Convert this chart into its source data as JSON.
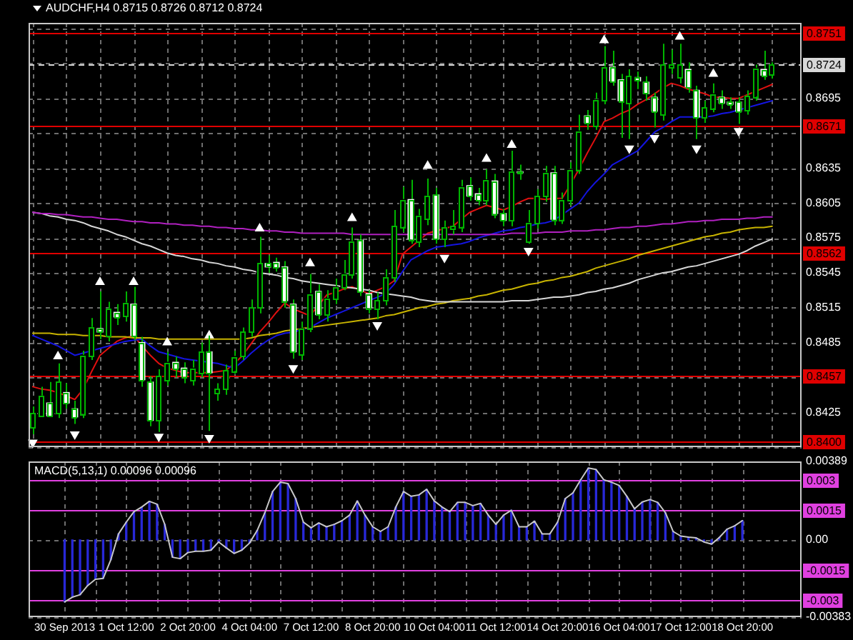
{
  "chart_data": [
    {
      "type": "candlestick",
      "title": "AUDCHF,H4 0.8715 0.8726 0.8712 0.8724",
      "color": "#00b400",
      "categories": [
        null,
        null,
        null,
        null,
        null,
        null,
        null,
        null,
        null,
        null,
        null,
        null,
        null,
        null,
        null,
        null,
        null,
        null,
        null,
        null,
        null,
        null,
        null,
        null,
        null,
        null,
        null,
        null,
        null,
        null,
        null,
        null,
        null,
        null,
        null,
        null,
        null,
        null,
        null,
        null,
        null,
        null,
        null,
        null,
        null,
        null,
        null,
        null,
        null,
        null,
        null,
        null,
        null,
        null,
        null,
        null,
        null,
        null,
        null,
        null,
        null,
        null,
        null,
        null,
        null,
        null,
        null,
        null,
        null,
        null,
        null,
        null,
        null,
        null,
        null,
        null,
        null,
        null,
        null,
        null,
        null,
        null,
        null,
        null,
        null,
        null,
        null,
        null,
        null
      ],
      "ohlc": [
        [
          0.8412,
          0.843,
          0.8406,
          0.8424
        ],
        [
          0.8422,
          0.8447,
          0.8421,
          0.8439
        ],
        [
          0.8433,
          0.8451,
          0.8421,
          0.8422
        ],
        [
          0.8424,
          0.8467,
          0.842,
          0.8451
        ],
        [
          0.8442,
          0.845,
          0.8428,
          0.8433
        ],
        [
          0.8428,
          0.8435,
          0.8415,
          0.8421
        ],
        [
          0.8424,
          0.8478,
          0.842,
          0.8474
        ],
        [
          0.8474,
          0.8506,
          0.847,
          0.8498
        ],
        [
          0.8497,
          0.8529,
          0.8488,
          0.8494
        ],
        [
          0.8491,
          0.852,
          0.8486,
          0.8514
        ],
        [
          0.8511,
          0.8518,
          0.85,
          0.8507
        ],
        [
          0.8508,
          0.8529,
          0.8503,
          0.8519
        ],
        [
          0.8518,
          0.8533,
          0.8487,
          0.8491
        ],
        [
          0.8485,
          0.849,
          0.8447,
          0.8453
        ],
        [
          0.8451,
          0.8456,
          0.8413,
          0.8418
        ],
        [
          0.8418,
          0.8462,
          0.8408,
          0.8456
        ],
        [
          0.8453,
          0.8477,
          0.8448,
          0.8468
        ],
        [
          0.8468,
          0.8473,
          0.8455,
          0.8463
        ],
        [
          0.8463,
          0.8468,
          0.845,
          0.8456
        ],
        [
          0.8453,
          0.847,
          0.8448,
          0.8463
        ],
        [
          0.8459,
          0.8485,
          0.8455,
          0.8477
        ],
        [
          0.8477,
          0.8491,
          0.8409,
          0.8459
        ],
        [
          0.8441,
          0.845,
          0.8435,
          0.8445
        ],
        [
          0.8445,
          0.8466,
          0.844,
          0.8461
        ],
        [
          0.8461,
          0.8478,
          0.8458,
          0.8473
        ],
        [
          0.8473,
          0.8498,
          0.847,
          0.8494
        ],
        [
          0.8494,
          0.8522,
          0.849,
          0.8515
        ],
        [
          0.8515,
          0.8576,
          0.851,
          0.8553
        ],
        [
          0.8553,
          0.856,
          0.8545,
          0.855
        ],
        [
          0.8554,
          0.8558,
          0.8546,
          0.855
        ],
        [
          0.855,
          0.8555,
          0.8515,
          0.8521
        ],
        [
          0.8518,
          0.8522,
          0.8471,
          0.8477
        ],
        [
          0.8475,
          0.8503,
          0.847,
          0.8497
        ],
        [
          0.8498,
          0.8544,
          0.8494,
          0.8527
        ],
        [
          0.8529,
          0.8535,
          0.8505,
          0.8509
        ],
        [
          0.8509,
          0.853,
          0.8503,
          0.8523
        ],
        [
          0.8523,
          0.854,
          0.8518,
          0.8533
        ],
        [
          0.8533,
          0.8556,
          0.853,
          0.8544
        ],
        [
          0.8544,
          0.8584,
          0.854,
          0.8572
        ],
        [
          0.8573,
          0.8578,
          0.8525,
          0.8529
        ],
        [
          0.8527,
          0.853,
          0.851,
          0.8515
        ],
        [
          0.8514,
          0.8528,
          0.8505,
          0.8521
        ],
        [
          0.8521,
          0.8548,
          0.8517,
          0.8541
        ],
        [
          0.8541,
          0.8599,
          0.8537,
          0.8585
        ],
        [
          0.8585,
          0.8619,
          0.858,
          0.8608
        ],
        [
          0.8608,
          0.8625,
          0.857,
          0.8574
        ],
        [
          0.8572,
          0.86,
          0.8567,
          0.8594
        ],
        [
          0.8591,
          0.8626,
          0.8586,
          0.8611
        ],
        [
          0.8612,
          0.8618,
          0.857,
          0.8574
        ],
        [
          0.8574,
          0.859,
          0.8567,
          0.8584
        ],
        [
          0.8582,
          0.8599,
          0.8578,
          0.8585
        ],
        [
          0.8585,
          0.8625,
          0.858,
          0.8619
        ],
        [
          0.862,
          0.8627,
          0.8607,
          0.8611
        ],
        [
          0.8613,
          0.8618,
          0.8603,
          0.8608
        ],
        [
          0.8608,
          0.8634,
          0.8603,
          0.8625
        ],
        [
          0.8624,
          0.863,
          0.8592,
          0.8596
        ],
        [
          0.8596,
          0.86,
          0.8585,
          0.859
        ],
        [
          0.859,
          0.865,
          0.8585,
          0.8632
        ],
        [
          0.8632,
          0.8638,
          0.8625,
          0.8631
        ],
        [
          0.8572,
          0.8599,
          0.857,
          0.8588
        ],
        [
          0.8588,
          0.8617,
          0.8583,
          0.8611
        ],
        [
          0.8611,
          0.8637,
          0.8606,
          0.8631
        ],
        [
          0.8631,
          0.8637,
          0.8586,
          0.8591
        ],
        [
          0.8591,
          0.8614,
          0.8587,
          0.8608
        ],
        [
          0.8608,
          0.864,
          0.8603,
          0.8634
        ],
        [
          0.8634,
          0.8681,
          0.863,
          0.8667
        ],
        [
          0.868,
          0.8685,
          0.8668,
          0.8674
        ],
        [
          0.8672,
          0.87,
          0.8668,
          0.8694
        ],
        [
          0.8694,
          0.874,
          0.869,
          0.8722
        ],
        [
          0.8722,
          0.8736,
          0.8706,
          0.871
        ],
        [
          0.8711,
          0.8716,
          0.8661,
          0.8693
        ],
        [
          0.8691,
          0.872,
          0.866,
          0.8714
        ],
        [
          0.8713,
          0.8718,
          0.8703,
          0.871
        ],
        [
          0.8709,
          0.8714,
          0.8693,
          0.8699
        ],
        [
          0.8696,
          0.87,
          0.867,
          0.8684
        ],
        [
          0.8681,
          0.8742,
          0.8676,
          0.8724
        ],
        [
          0.8722,
          0.8737,
          0.8716,
          0.8724
        ],
        [
          0.8713,
          0.8742,
          0.8708,
          0.8724
        ],
        [
          0.872,
          0.8726,
          0.87,
          0.8705
        ],
        [
          0.8702,
          0.8706,
          0.866,
          0.8679
        ],
        [
          0.8679,
          0.8693,
          0.8674,
          0.8687
        ],
        [
          0.8687,
          0.8708,
          0.8683,
          0.8699
        ],
        [
          0.8696,
          0.8702,
          0.8686,
          0.8691
        ],
        [
          0.8692,
          0.8696,
          0.8686,
          0.869
        ],
        [
          0.8692,
          0.8696,
          0.8673,
          0.8684
        ],
        [
          0.8685,
          0.8702,
          0.8681,
          0.8697
        ],
        [
          0.8697,
          0.8724,
          0.8693,
          0.8721
        ],
        [
          0.872,
          0.8736,
          0.8711,
          0.8715
        ],
        [
          0.8715,
          0.8726,
          0.8712,
          0.8724
        ]
      ],
      "colors": [
        "#000000",
        "#000000",
        "#ffffff",
        "#000000",
        "#ffffff",
        "#ffffff",
        "#000000",
        "#000000",
        "#ffffff",
        "#000000",
        "#ffffff",
        "#000000",
        "#ffffff",
        "#ffffff",
        "#ffffff",
        "#000000",
        "#000000",
        "#ffffff",
        "#ffffff",
        "#000000",
        "#000000",
        "#ffffff",
        "#000000",
        "#000000",
        "#000000",
        "#000000",
        "#000000",
        "#000000",
        "#ffffff",
        "#ffffff",
        "#ffffff",
        "#ffffff",
        "#000000",
        "#000000",
        "#ffffff",
        "#000000",
        "#000000",
        "#000000",
        "#000000",
        "#ffffff",
        "#ffffff",
        "#000000",
        "#000000",
        "#000000",
        "#000000",
        "#ffffff",
        "#000000",
        "#000000",
        "#ffffff",
        "#000000",
        "#000000",
        "#000000",
        "#ffffff",
        "#ffffff",
        "#000000",
        "#ffffff",
        "#ffffff",
        "#000000",
        "#ffffff",
        "#000000",
        "#000000",
        "#000000",
        "#ffffff",
        "#000000",
        "#000000",
        "#000000",
        "#ffffff",
        "#000000",
        "#000000",
        "#ffffff",
        "#ffffff",
        "#000000",
        "#ffffff",
        "#ffffff",
        "#ffffff",
        "#000000",
        "#000000",
        "#000000",
        "#ffffff",
        "#ffffff",
        "#000000",
        "#000000",
        "#ffffff",
        "#ffffff",
        "#ffffff",
        "#000000",
        "#000000",
        "#ffffff",
        "#000000"
      ],
      "series": [
        {
          "type": "line",
          "color": "#b020c0",
          "values": [
            0.8597,
            0.8596,
            0.8596,
            0.8595,
            0.8595,
            0.8594,
            0.8593,
            0.8593,
            0.8592,
            0.8591,
            0.8591,
            0.859,
            0.8589,
            0.8589,
            0.8588,
            0.8588,
            0.8587,
            0.8587,
            0.8586,
            0.8586,
            0.8585,
            0.8585,
            0.8584,
            0.8584,
            0.8583,
            0.8583,
            0.8582,
            0.8582,
            0.8581,
            0.8581,
            0.858,
            0.858,
            0.8579,
            0.8579,
            0.8579,
            0.8579,
            0.8579,
            0.8579,
            0.8578,
            0.8578,
            0.8578,
            0.8578,
            0.8578,
            0.8578,
            0.8578,
            0.8578,
            0.8578,
            0.8578,
            0.8578,
            0.8578,
            0.8578,
            0.8578,
            0.8578,
            0.8578,
            0.8578,
            0.8578,
            0.8578,
            0.8579,
            0.8579,
            0.8579,
            0.8579,
            0.858,
            0.858,
            0.858,
            0.8581,
            0.8581,
            0.8581,
            0.8582,
            0.8582,
            0.8583,
            0.8584,
            0.8584,
            0.8585,
            0.8585,
            0.8586,
            0.8587,
            0.8587,
            0.8588,
            0.8589,
            0.8589,
            0.859,
            0.859,
            0.8591,
            0.8591,
            0.8591,
            0.8592,
            0.8592,
            0.8593,
            0.8593
          ]
        },
        {
          "type": "line",
          "color": "#d8d8d8",
          "values": [
            0.8597,
            0.8596,
            0.8594,
            0.8593,
            0.8591,
            0.859,
            0.8588,
            0.8585,
            0.8583,
            0.8581,
            0.8578,
            0.8576,
            0.8573,
            0.857,
            0.8568,
            0.8565,
            0.8562,
            0.856,
            0.8559,
            0.8557,
            0.8556,
            0.8554,
            0.8553,
            0.8551,
            0.855,
            0.8548,
            0.8547,
            0.8545,
            0.8544,
            0.8543,
            0.8541,
            0.854,
            0.8538,
            0.8537,
            0.8536,
            0.8535,
            0.8534,
            0.8533,
            0.8532,
            0.8531,
            0.853,
            0.8528,
            0.8527,
            0.8526,
            0.8525,
            0.8524,
            0.8522,
            0.8521,
            0.852,
            0.852,
            0.852,
            0.852,
            0.852,
            0.852,
            0.852,
            0.852,
            0.852,
            0.8521,
            0.8521,
            0.8521,
            0.8522,
            0.8523,
            0.8524,
            0.8524,
            0.8525,
            0.8526,
            0.8528,
            0.8529,
            0.8531,
            0.8532,
            0.8534,
            0.8536,
            0.8539,
            0.8541,
            0.8543,
            0.8545,
            0.8546,
            0.8548,
            0.855,
            0.8551,
            0.8553,
            0.8555,
            0.8557,
            0.8559,
            0.8561,
            0.8564,
            0.8568,
            0.8571,
            0.8574
          ]
        },
        {
          "type": "line",
          "color": "#c8b400",
          "values": [
            0.8493,
            0.8493,
            0.8493,
            0.8492,
            0.8492,
            0.8492,
            0.8491,
            0.8491,
            0.8491,
            0.849,
            0.849,
            0.849,
            0.8489,
            0.8489,
            0.8489,
            0.8488,
            0.8488,
            0.8488,
            0.8488,
            0.8488,
            0.8488,
            0.8488,
            0.8488,
            0.8488,
            0.8488,
            0.8488,
            0.8489,
            0.8491,
            0.8492,
            0.8493,
            0.8495,
            0.8496,
            0.8497,
            0.8498,
            0.8499,
            0.85,
            0.8501,
            0.8502,
            0.8503,
            0.8504,
            0.8505,
            0.8506,
            0.8508,
            0.8509,
            0.8511,
            0.8513,
            0.8515,
            0.8516,
            0.8518,
            0.8519,
            0.8521,
            0.8522,
            0.8523,
            0.8525,
            0.8526,
            0.8528,
            0.853,
            0.8531,
            0.8533,
            0.8535,
            0.8536,
            0.8538,
            0.8539,
            0.8541,
            0.8542,
            0.8544,
            0.8546,
            0.8549,
            0.8551,
            0.8553,
            0.8555,
            0.8557,
            0.856,
            0.8562,
            0.8564,
            0.8566,
            0.8568,
            0.857,
            0.8572,
            0.8574,
            0.8576,
            0.8577,
            0.8579,
            0.858,
            0.8582,
            0.8583,
            0.8584,
            0.8584,
            0.8585
          ]
        },
        {
          "type": "line",
          "color": "#1414e0",
          "values": [
            0.8491,
            0.8488,
            0.8485,
            0.8482,
            0.8478,
            0.8474,
            0.8476,
            0.8478,
            0.848,
            0.8482,
            0.8484,
            0.8486,
            0.8487,
            0.8488,
            0.8482,
            0.8477,
            0.8475,
            0.8473,
            0.8471,
            0.847,
            0.8469,
            0.8468,
            0.8467,
            0.8465,
            0.8463,
            0.8469,
            0.8476,
            0.8482,
            0.8487,
            0.8491,
            0.8493,
            0.8494,
            0.8496,
            0.8498,
            0.8502,
            0.8506,
            0.8509,
            0.8512,
            0.8515,
            0.8518,
            0.8521,
            0.8524,
            0.8527,
            0.8535,
            0.8546,
            0.8556,
            0.856,
            0.8564,
            0.8567,
            0.8568,
            0.8569,
            0.857,
            0.8572,
            0.8575,
            0.8577,
            0.8579,
            0.8581,
            0.8582,
            0.8584,
            0.8585,
            0.8587,
            0.8588,
            0.859,
            0.8595,
            0.86,
            0.8605,
            0.8615,
            0.8623,
            0.863,
            0.8638,
            0.8642,
            0.8646,
            0.865,
            0.8658,
            0.8666,
            0.867,
            0.8675,
            0.8679,
            0.8679,
            0.8679,
            0.8679,
            0.868,
            0.8682,
            0.8683,
            0.8685,
            0.8687,
            0.8689,
            0.8691,
            0.8693
          ]
        },
        {
          "type": "line",
          "color": "#e01010",
          "values": [
            0.8447,
            0.8445,
            0.8444,
            0.8442,
            0.8439,
            0.8436,
            0.8445,
            0.846,
            0.8474,
            0.848,
            0.8486,
            0.8489,
            0.8491,
            0.8482,
            0.8474,
            0.8467,
            0.8463,
            0.8461,
            0.8459,
            0.8459,
            0.8459,
            0.8459,
            0.846,
            0.8461,
            0.8467,
            0.8474,
            0.8484,
            0.8494,
            0.8502,
            0.8511,
            0.8519,
            0.8514,
            0.8511,
            0.8508,
            0.8517,
            0.8526,
            0.8528,
            0.8531,
            0.8533,
            0.853,
            0.8527,
            0.853,
            0.8533,
            0.8538,
            0.8561,
            0.8567,
            0.8573,
            0.8579,
            0.8581,
            0.8583,
            0.8585,
            0.8591,
            0.8597,
            0.86,
            0.8603,
            0.8601,
            0.8599,
            0.8602,
            0.8606,
            0.8609,
            0.8609,
            0.8608,
            0.8609,
            0.8609,
            0.8621,
            0.8634,
            0.8648,
            0.8661,
            0.8675,
            0.8678,
            0.8682,
            0.8685,
            0.869,
            0.8694,
            0.8699,
            0.8704,
            0.8708,
            0.8706,
            0.8703,
            0.8701,
            0.8699,
            0.8696,
            0.8696,
            0.8695,
            0.8695,
            0.8698,
            0.8701,
            0.8704,
            0.8707
          ]
        },
        {
          "type": "scatter",
          "color": "#ffffff",
          "marker": "triangle",
          "values": [
            null,
            null,
            null,
            0.8473,
            null,
            null,
            null,
            null,
            0.8537,
            null,
            null,
            null,
            0.8537,
            null,
            null,
            null,
            0.8485,
            null,
            null,
            null,
            null,
            0.8491,
            null,
            null,
            null,
            null,
            null,
            0.8583,
            null,
            null,
            null,
            null,
            null,
            0.8553,
            null,
            null,
            null,
            null,
            0.8592,
            null,
            null,
            null,
            null,
            null,
            null,
            null,
            null,
            0.8637,
            null,
            null,
            null,
            null,
            null,
            null,
            0.8643,
            null,
            null,
            0.8655,
            null,
            null,
            null,
            null,
            null,
            null,
            null,
            null,
            null,
            null,
            0.8745,
            null,
            null,
            null,
            null,
            null,
            null,
            null,
            null,
            0.8748,
            null,
            null,
            null,
            0.8716,
            null,
            null,
            null,
            null,
            null,
            null,
            null
          ]
        },
        {
          "type": "scatter",
          "color": "#ffffff",
          "marker": "triangle",
          "values": [
            0.8399,
            null,
            null,
            null,
            null,
            0.8406,
            null,
            null,
            null,
            null,
            null,
            null,
            null,
            null,
            null,
            0.8404,
            null,
            null,
            null,
            null,
            null,
            0.8403,
            null,
            null,
            null,
            null,
            null,
            null,
            null,
            null,
            null,
            0.8463,
            null,
            null,
            null,
            null,
            null,
            null,
            null,
            null,
            null,
            0.85,
            null,
            null,
            null,
            null,
            null,
            null,
            null,
            0.8558,
            null,
            null,
            null,
            null,
            null,
            null,
            null,
            null,
            null,
            0.8564,
            null,
            null,
            null,
            null,
            null,
            null,
            null,
            null,
            null,
            null,
            null,
            0.8652,
            null,
            null,
            0.8661,
            null,
            null,
            null,
            null,
            0.8652,
            null,
            null,
            null,
            null,
            0.8667,
            null,
            null,
            null,
            null
          ]
        }
      ],
      "ylim": [
        0.8395,
        0.876
      ],
      "yticks": [
        {
          "value": 0.8395,
          "label": null
        },
        0.8425,
        {
          "value": 0.8455,
          "label": null
        },
        0.8485,
        0.8515,
        0.8545,
        0.8575,
        0.8605,
        0.8635,
        {
          "value": 0.8665,
          "label": null
        },
        0.8695,
        {
          "value": 0.8725,
          "label": null
        },
        {
          "value": 0.8755,
          "label": null
        }
      ],
      "ref_lines": [
        {
          "axis": "y",
          "value": 0.8751,
          "label": "0.8751",
          "color": "#e00000"
        },
        {
          "axis": "y",
          "value": 0.8724,
          "label": "0.8724",
          "color": "#d8d8d8",
          "line_style": "dashed"
        },
        {
          "axis": "y",
          "value": 0.8671,
          "label": "0.8671",
          "color": "#e00000"
        },
        {
          "axis": "y",
          "value": 0.8562,
          "label": "0.8562",
          "color": "#e00000"
        },
        {
          "axis": "y",
          "value": 0.8457,
          "label": "0.8457",
          "color": "#e00000"
        },
        {
          "axis": "y",
          "value": 0.84,
          "label": "0.8400",
          "color": "#e00000"
        }
      ],
      "tick_labels": "y",
      "grid": true
    },
    {
      "type": "bar",
      "title": "MACD(5,13,1) 0.00096 0.00096",
      "categories": [
        "30 Sep 2013",
        null,
        null,
        null,
        null,
        null,
        null,
        null,
        "1 Oct 12:00",
        null,
        null,
        null,
        null,
        null,
        null,
        null,
        "2 Oct 20:00",
        null,
        null,
        null,
        null,
        null,
        null,
        null,
        "4 Oct 04:00",
        null,
        null,
        null,
        null,
        null,
        null,
        null,
        "7 Oct 12:00",
        null,
        null,
        null,
        null,
        null,
        null,
        null,
        "8 Oct 20:00",
        null,
        null,
        null,
        null,
        null,
        null,
        null,
        "10 Oct 04:00",
        null,
        null,
        null,
        null,
        null,
        null,
        null,
        "11 Oct 12:00",
        null,
        null,
        null,
        null,
        null,
        null,
        null,
        "14 Oct 20:00",
        null,
        null,
        null,
        null,
        null,
        null,
        null,
        "16 Oct 04:00",
        null,
        null,
        null,
        null,
        null,
        null,
        null,
        "17 Oct 12:00",
        null,
        null,
        null,
        null,
        null,
        null,
        null,
        "18 Oct 20:00"
      ],
      "series": [
        {
          "type": "bar",
          "color": "#2828d8",
          "values": [
            -0.00307,
            -0.00284,
            -0.00272,
            -0.00226,
            -0.00195,
            -0.00191,
            -0.00098,
            0.0003,
            0.00088,
            0.0014,
            0.00163,
            0.00191,
            0.00177,
            0.00077,
            -0.00086,
            -0.00093,
            -0.00063,
            -0.00056,
            -0.00056,
            -0.00051,
            -0.0001,
            -0.0004,
            -0.00067,
            -0.00051,
            -0.00016,
            0.00047,
            0.00135,
            0.0024,
            0.00286,
            0.00279,
            0.00205,
            0.00088,
            0.0006,
            0.00084,
            0.00065,
            0.00077,
            0.00095,
            0.00123,
            0.00193,
            0.00123,
            0.00065,
            0.00042,
            0.00065,
            0.00163,
            0.0024,
            0.00216,
            0.00223,
            0.00251,
            0.00193,
            0.00163,
            0.0014,
            0.00186,
            0.00186,
            0.0017,
            0.00181,
            0.00123,
            0.00077,
            0.00123,
            0.00147,
            0.00065,
            0.00065,
            0.00093,
            0.0003,
            0.0003,
            0.00088,
            0.00205,
            0.00233,
            0.00298,
            0.00356,
            0.00349,
            0.00298,
            0.00286,
            0.0027,
            0.00216,
            0.00154,
            0.00188,
            0.002,
            0.00186,
            0.00135,
            0.00042,
            0.00019,
            0.00014,
            0.0001,
            -0.0001,
            -0.00021,
            0.00012,
            0.00053,
            0.0007,
            0.00096
          ]
        },
        {
          "type": "line",
          "color": "#c8c8c8",
          "values": [
            -0.00307,
            -0.00284,
            -0.00272,
            -0.00226,
            -0.00195,
            -0.00191,
            -0.00098,
            0.0003,
            0.00088,
            0.0014,
            0.00163,
            0.00191,
            0.00177,
            0.00077,
            -0.00086,
            -0.00093,
            -0.00063,
            -0.00056,
            -0.00056,
            -0.00051,
            -0.0001,
            -0.0004,
            -0.00067,
            -0.00051,
            -0.00016,
            0.00047,
            0.00135,
            0.0024,
            0.00286,
            0.00279,
            0.00205,
            0.00088,
            0.0006,
            0.00084,
            0.00065,
            0.00077,
            0.00095,
            0.00123,
            0.00193,
            0.00123,
            0.00065,
            0.00042,
            0.00065,
            0.00163,
            0.0024,
            0.00216,
            0.00223,
            0.00251,
            0.00193,
            0.00163,
            0.0014,
            0.00186,
            0.00186,
            0.0017,
            0.00181,
            0.00123,
            0.00077,
            0.00123,
            0.00147,
            0.00065,
            0.00065,
            0.00093,
            0.0003,
            0.0003,
            0.00088,
            0.00205,
            0.00233,
            0.00298,
            0.00356,
            0.00349,
            0.00298,
            0.00286,
            0.0027,
            0.00216,
            0.00154,
            0.00188,
            0.002,
            0.00186,
            0.00135,
            0.00042,
            0.00019,
            0.00014,
            0.0001,
            -0.0001,
            -0.00021,
            0.00012,
            0.00053,
            0.0007,
            0.00096
          ]
        }
      ],
      "ylim": [
        -0.00383,
        0.00389
      ],
      "yticks": [
        -0.00383,
        {
          "value": 0,
          "label": "0.00"
        },
        0.00389
      ],
      "ref_lines": [
        {
          "axis": "y",
          "value": 0.003,
          "label": "0.003",
          "color": "#e040e0"
        },
        {
          "axis": "y",
          "value": 0.0015,
          "label": "0.0015",
          "color": "#e040e0"
        },
        {
          "axis": "y",
          "value": -0.0015,
          "label": "-0.0015",
          "color": "#e040e0"
        },
        {
          "axis": "y",
          "value": -0.003,
          "label": "-0.003",
          "color": "#e040e0"
        }
      ],
      "grid": true
    }
  ]
}
